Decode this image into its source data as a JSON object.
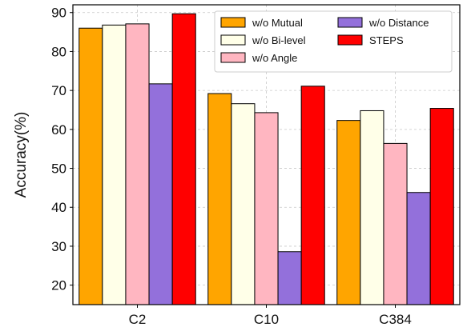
{
  "chart_data": {
    "type": "bar",
    "categories": [
      "C2",
      "C10",
      "C384"
    ],
    "series": [
      {
        "name": "w/o Mutual",
        "color": "#FFA500",
        "values": [
          86.0,
          69.2,
          62.3
        ]
      },
      {
        "name": "w/o Bi-level",
        "color": "#FFFFE8",
        "values": [
          86.8,
          66.6,
          64.8
        ]
      },
      {
        "name": "w/o Angle",
        "color": "#FFB6C1",
        "values": [
          87.1,
          64.3,
          56.4
        ]
      },
      {
        "name": "w/o Distance",
        "color": "#9370DB",
        "values": [
          71.7,
          28.6,
          43.8
        ]
      },
      {
        "name": "STEPS",
        "color": "#FF0000",
        "values": [
          89.7,
          71.1,
          65.4
        ]
      }
    ],
    "ylabel": "Accuracy(%)",
    "xlabel": "",
    "ylim": [
      15,
      92
    ],
    "yticks": [
      20,
      30,
      40,
      50,
      60,
      70,
      80,
      90
    ],
    "grid": true,
    "legend": {
      "position": "top-right",
      "columns": 2
    }
  }
}
